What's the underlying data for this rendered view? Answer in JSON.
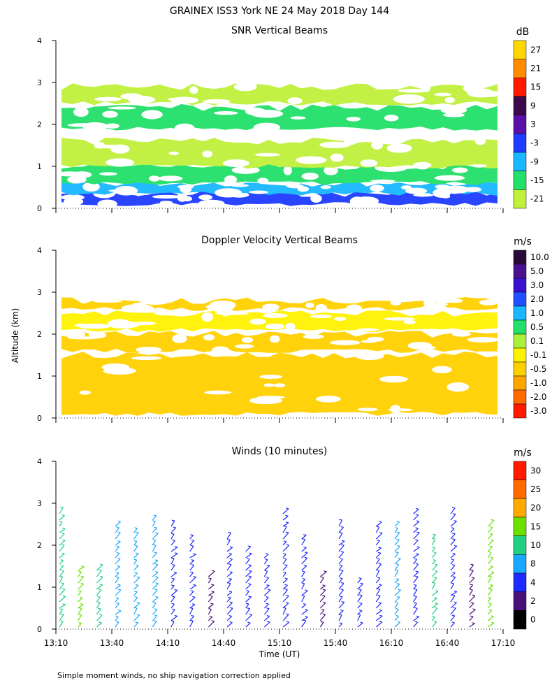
{
  "title": "GRAINEX ISS3 York NE  24 May 2018 Day 144",
  "footnote": "Simple moment winds, no ship navigation correction applied",
  "y_axis_label": "Altitude (km)",
  "x_axis_label": "Time (UT)",
  "chart_data": [
    {
      "type": "heatmap",
      "title": "SNR Vertical Beams",
      "ylabel": "Altitude (km)",
      "ylim": [
        0,
        4
      ],
      "yticks": [
        "0",
        "1",
        "2",
        "3",
        "4"
      ],
      "xlim": [
        "13:10",
        "17:10"
      ],
      "colorbar": {
        "unit": "dB",
        "labels": [
          "27",
          "21",
          "15",
          "9",
          "3",
          "-3",
          "-9",
          "-15",
          "-21"
        ],
        "colors": [
          "#FFD700",
          "#FF8C00",
          "#FF1A00",
          "#3A0A4A",
          "#5A10A8",
          "#1E3CFF",
          "#19B7FF",
          "#22E06A",
          "#BFF03A"
        ]
      },
      "layers": [
        {
          "alt_bottom": 0.1,
          "alt_top": 0.35,
          "class": "-3"
        },
        {
          "alt_bottom": 0.35,
          "alt_top": 0.6,
          "class": "-9"
        },
        {
          "alt_bottom": 0.6,
          "alt_top": 1.0,
          "class": "-15"
        },
        {
          "alt_bottom": 1.0,
          "alt_top": 1.6,
          "class": "-21"
        },
        {
          "alt_bottom": 1.9,
          "alt_top": 2.4,
          "class": "-15"
        },
        {
          "alt_bottom": 2.5,
          "alt_top": 2.9,
          "class": "-21"
        }
      ]
    },
    {
      "type": "heatmap",
      "title": "Doppler Velocity Vertical Beams",
      "ylabel": "Altitude (km)",
      "ylim": [
        0,
        4
      ],
      "yticks": [
        "0",
        "1",
        "2",
        "3",
        "4"
      ],
      "xlim": [
        "13:10",
        "17:10"
      ],
      "colorbar": {
        "unit": "m/s",
        "labels": [
          "10.0",
          "5.0",
          "3.0",
          "2.0",
          "1.0",
          "0.5",
          "0.1",
          "-0.1",
          "-0.5",
          "-1.0",
          "-2.0",
          "-3.0"
        ],
        "colors": [
          "#2A0A3A",
          "#4A1090",
          "#3A10D0",
          "#1E50FF",
          "#19B7FF",
          "#22E06A",
          "#A8F03A",
          "#FFF200",
          "#FFD000",
          "#FFA500",
          "#FF6A00",
          "#FF1A00"
        ]
      },
      "layers": [
        {
          "alt_bottom": 0.1,
          "alt_top": 1.5,
          "class": "-0.5"
        },
        {
          "alt_bottom": 1.6,
          "alt_top": 2.0,
          "class": "-0.5"
        },
        {
          "alt_bottom": 2.1,
          "alt_top": 2.5,
          "class": "-0.1"
        },
        {
          "alt_bottom": 2.6,
          "alt_top": 2.8,
          "class": "-0.5"
        }
      ]
    },
    {
      "type": "scatter",
      "title": "Winds (10 minutes)",
      "ylabel": "Altitude (km)",
      "xlabel": "Time (UT)",
      "ylim": [
        0,
        4
      ],
      "yticks": [
        "0",
        "1",
        "2",
        "3",
        "4"
      ],
      "xlim": [
        "13:10",
        "17:10"
      ],
      "xticks": [
        "13:10",
        "13:40",
        "14:10",
        "14:40",
        "15:10",
        "15:40",
        "16:10",
        "16:40",
        "17:10"
      ],
      "colorbar": {
        "unit": "m/s",
        "labels": [
          "30",
          "25",
          "20",
          "15",
          "10",
          "8",
          "4",
          "2",
          "0"
        ],
        "colors": [
          "#FF1A00",
          "#FF6A00",
          "#FFAA00",
          "#6CE000",
          "#22D080",
          "#19A8FF",
          "#1E2AFF",
          "#4A107A",
          "#000000"
        ]
      },
      "profiles": [
        {
          "time": "13:10",
          "alt_top": 2.8,
          "class": "10"
        },
        {
          "time": "13:20",
          "alt_top": 1.5,
          "class": "15"
        },
        {
          "time": "13:30",
          "alt_top": 1.5,
          "class": "10"
        },
        {
          "time": "13:40",
          "alt_top": 2.6,
          "class": "8"
        },
        {
          "time": "13:50",
          "alt_top": 2.4,
          "class": "8"
        },
        {
          "time": "14:00",
          "alt_top": 2.7,
          "class": "8"
        },
        {
          "time": "14:10",
          "alt_top": 2.6,
          "class": "4"
        },
        {
          "time": "14:20",
          "alt_top": 2.2,
          "class": "4"
        },
        {
          "time": "14:30",
          "alt_top": 1.3,
          "class": "2"
        },
        {
          "time": "14:40",
          "alt_top": 2.3,
          "class": "4"
        },
        {
          "time": "14:50",
          "alt_top": 2.0,
          "class": "4"
        },
        {
          "time": "15:00",
          "alt_top": 1.8,
          "class": "4"
        },
        {
          "time": "15:10",
          "alt_top": 2.8,
          "class": "4"
        },
        {
          "time": "15:20",
          "alt_top": 2.2,
          "class": "4"
        },
        {
          "time": "15:30",
          "alt_top": 1.3,
          "class": "2"
        },
        {
          "time": "15:40",
          "alt_top": 2.5,
          "class": "4"
        },
        {
          "time": "15:50",
          "alt_top": 1.2,
          "class": "4"
        },
        {
          "time": "16:00",
          "alt_top": 2.5,
          "class": "4"
        },
        {
          "time": "16:10",
          "alt_top": 2.6,
          "class": "8"
        },
        {
          "time": "16:20",
          "alt_top": 2.9,
          "class": "4"
        },
        {
          "time": "16:30",
          "alt_top": 2.3,
          "class": "10"
        },
        {
          "time": "16:40",
          "alt_top": 2.9,
          "class": "4"
        },
        {
          "time": "16:50",
          "alt_top": 1.5,
          "class": "2"
        },
        {
          "time": "17:00",
          "alt_top": 2.6,
          "class": "15"
        }
      ]
    }
  ]
}
